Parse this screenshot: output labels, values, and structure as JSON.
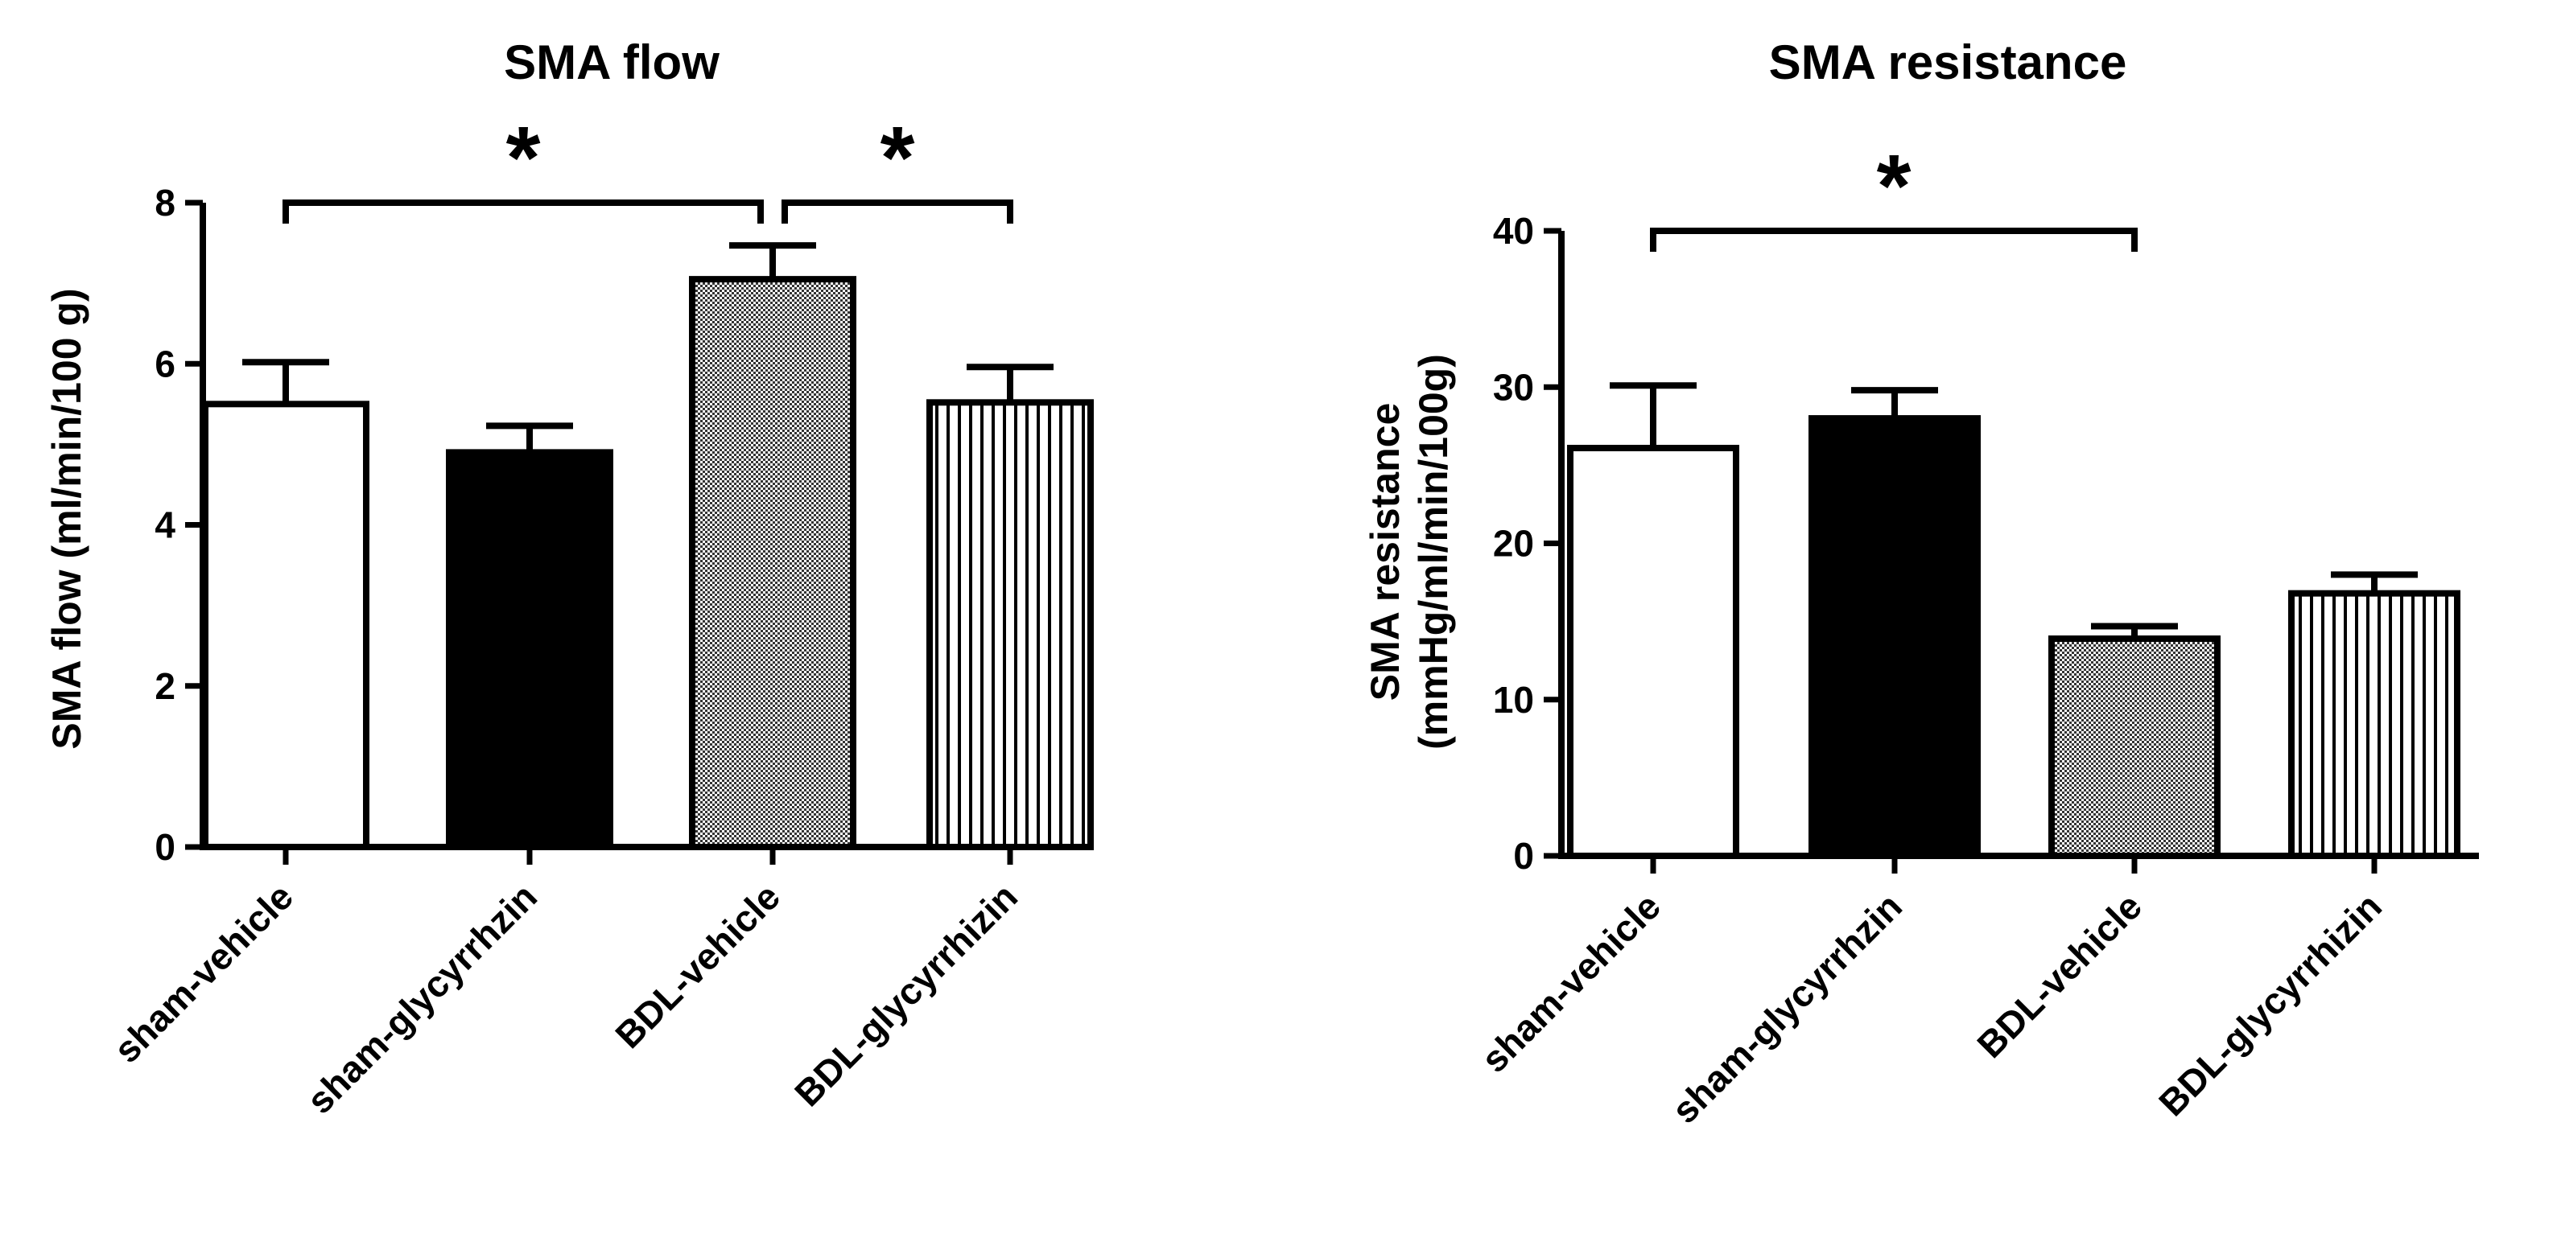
{
  "chart_data": [
    {
      "type": "bar",
      "title": "SMA flow",
      "ylabel_lines": [
        "SMA flow (ml/min/100 g)"
      ],
      "xlabel": "",
      "ylim": [
        0,
        8
      ],
      "yticks": [
        0,
        2,
        4,
        6,
        8
      ],
      "categories": [
        "sham-vehicle",
        "sham-glycyrrhzin",
        "BDL-vehicle",
        "BDL-glycyrrhizin"
      ],
      "values": [
        5.5,
        4.9,
        7.05,
        5.52
      ],
      "errors": [
        0.52,
        0.33,
        0.42,
        0.44
      ],
      "fills": [
        "white",
        "black",
        "checker",
        "vlines"
      ],
      "significance": [
        {
          "from": 0,
          "to": 2,
          "label": "*",
          "y": 8.0
        },
        {
          "from": 2,
          "to": 3,
          "label": "*",
          "y": 8.0
        }
      ]
    },
    {
      "type": "bar",
      "title": "SMA resistance",
      "ylabel_lines": [
        "SMA resistance",
        "(mmHg/ml/min/100g)"
      ],
      "xlabel": "",
      "ylim": [
        0,
        40
      ],
      "yticks": [
        0,
        10,
        20,
        30,
        40
      ],
      "categories": [
        "sham-vehicle",
        "sham-glycyrrhzin",
        "BDL-vehicle",
        "BDL-glycyrrhizin"
      ],
      "values": [
        26.1,
        28.0,
        13.9,
        16.8
      ],
      "errors": [
        4.0,
        1.8,
        0.8,
        1.2
      ],
      "fills": [
        "white",
        "black",
        "checker",
        "vlines"
      ],
      "significance": [
        {
          "from": 0,
          "to": 2,
          "label": "*",
          "y": 40.0
        }
      ]
    }
  ]
}
